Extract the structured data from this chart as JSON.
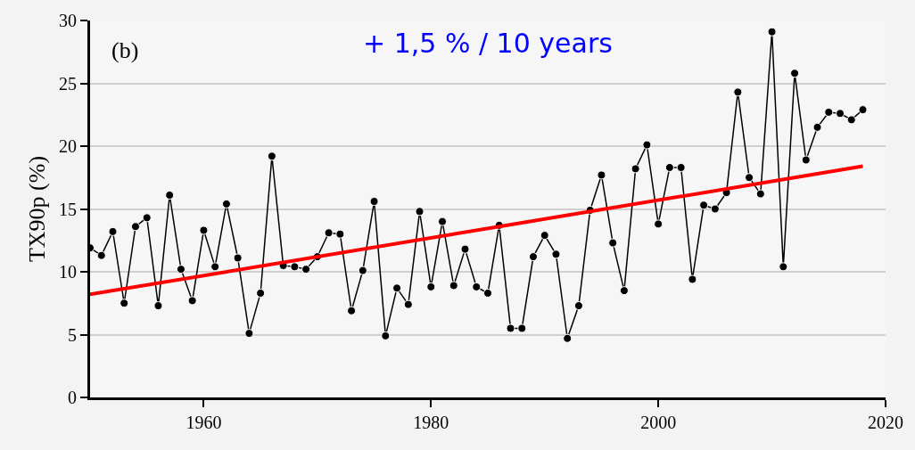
{
  "chart_data": {
    "type": "line",
    "ylabel": "TX90p (%)",
    "annotations": [
      "(b)",
      "+ 1,5 % / 10 years"
    ],
    "x": [
      1950,
      1951,
      1952,
      1953,
      1954,
      1955,
      1956,
      1957,
      1958,
      1959,
      1960,
      1961,
      1962,
      1963,
      1964,
      1965,
      1966,
      1967,
      1968,
      1969,
      1970,
      1971,
      1972,
      1973,
      1974,
      1975,
      1976,
      1977,
      1978,
      1979,
      1980,
      1981,
      1982,
      1983,
      1984,
      1985,
      1986,
      1987,
      1988,
      1989,
      1990,
      1991,
      1992,
      1993,
      1994,
      1995,
      1996,
      1997,
      1998,
      1999,
      2000,
      2001,
      2002,
      2003,
      2004,
      2005,
      2006,
      2007,
      2008,
      2009,
      2010,
      2011,
      2012,
      2013,
      2014,
      2015,
      2016,
      2017,
      2018
    ],
    "series": [
      {
        "color": "#000000",
        "marker": "circle",
        "values": [
          11.9,
          11.3,
          13.2,
          7.5,
          13.6,
          14.3,
          7.3,
          16.1,
          10.2,
          7.7,
          13.3,
          10.4,
          15.4,
          11.1,
          5.1,
          8.3,
          19.2,
          10.5,
          10.4,
          10.2,
          11.2,
          13.1,
          13.0,
          6.9,
          10.1,
          15.6,
          4.9,
          8.7,
          7.4,
          14.8,
          8.8,
          14.0,
          8.9,
          11.8,
          8.8,
          8.3,
          13.7,
          5.5,
          5.5,
          11.2,
          12.9,
          11.4,
          4.7,
          7.3,
          14.9,
          17.7,
          12.3,
          8.5,
          18.2,
          20.1,
          13.8,
          18.3,
          18.3,
          9.4,
          15.3,
          15.0,
          16.3,
          24.3,
          17.5,
          16.2,
          29.1,
          10.4,
          25.8,
          18.9,
          21.5,
          22.7,
          22.6,
          22.1,
          22.9
        ]
      },
      {
        "color": "#ff0000",
        "marker": "none",
        "x": [
          1950,
          2018
        ],
        "values": [
          8.2,
          18.4
        ]
      }
    ],
    "xlim": [
      1950,
      2020
    ],
    "xticks": [
      1960,
      1980,
      2000,
      2020
    ],
    "ylim": [
      0,
      30
    ],
    "yticks": [
      0,
      5,
      10,
      15,
      20,
      25,
      30
    ],
    "grid": "y"
  }
}
